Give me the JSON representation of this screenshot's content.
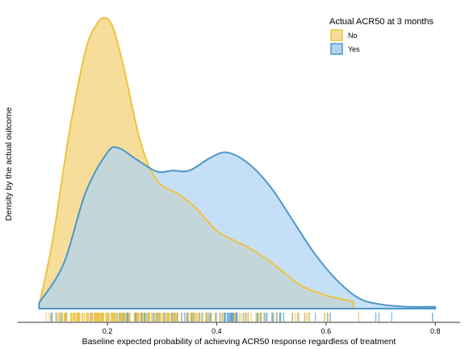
{
  "chart_data": {
    "type": "area",
    "title": "",
    "xlabel": "Baseline expected probability of achieving ACR50 response regardless of treatment",
    "ylabel": "Density by the actual outcome",
    "xlim": [
      0.07,
      0.81
    ],
    "x_ticks": [
      "0.2",
      "0.4",
      "0.6",
      "0.8"
    ],
    "x_tick_values": [
      0.2,
      0.4,
      0.6,
      0.8
    ],
    "y_ticks_shown": false,
    "grid": false,
    "legend": {
      "title": "Actual ACR50 at 3 months",
      "placement": "top-right"
    },
    "rug": true,
    "series": [
      {
        "name": "No",
        "color": "#EFC23E",
        "fill": "#F6DE9A",
        "x": [
          0.075,
          0.1,
          0.13,
          0.16,
          0.18,
          0.195,
          0.21,
          0.23,
          0.26,
          0.29,
          0.33,
          0.36,
          0.4,
          0.43,
          0.46,
          0.5,
          0.55,
          0.6,
          0.65
        ],
        "density": [
          0.07,
          1.45,
          3.7,
          5.45,
          6.0,
          6.15,
          5.95,
          5.1,
          3.55,
          2.72,
          2.42,
          2.15,
          1.65,
          1.45,
          1.28,
          0.98,
          0.52,
          0.28,
          0.15
        ]
      },
      {
        "name": "Yes",
        "color": "#4C96C8",
        "fill": "#AED4F2",
        "x": [
          0.075,
          0.12,
          0.16,
          0.2,
          0.22,
          0.25,
          0.29,
          0.32,
          0.35,
          0.39,
          0.42,
          0.46,
          0.5,
          0.54,
          0.58,
          0.62,
          0.66,
          0.7,
          0.75,
          0.8
        ],
        "density": [
          0.12,
          0.95,
          2.45,
          3.3,
          3.4,
          3.18,
          2.9,
          2.92,
          2.92,
          3.2,
          3.3,
          3.05,
          2.55,
          1.85,
          1.15,
          0.6,
          0.22,
          0.09,
          0.04,
          0.04
        ]
      }
    ]
  }
}
